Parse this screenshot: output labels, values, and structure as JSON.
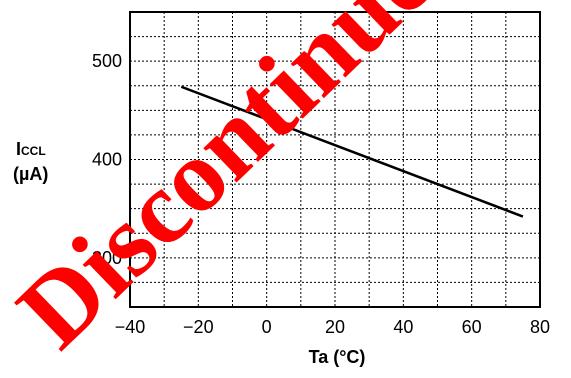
{
  "chart_data": {
    "type": "line",
    "title": "",
    "xlabel": "Ta (°C)",
    "ylabel_main": "I",
    "ylabel_sub": "CCL",
    "ylabel_unit": "(µA)",
    "xlim": [
      -40,
      80
    ],
    "ylim": [
      250,
      550
    ],
    "x_ticks": [
      -40,
      -20,
      0,
      20,
      40,
      60,
      80
    ],
    "x_tick_labels": [
      "−40",
      "−20",
      "0",
      "20",
      "40",
      "60",
      "80"
    ],
    "y_ticks": [
      300,
      400,
      500
    ],
    "y_tick_labels": [
      "300",
      "400",
      "500"
    ],
    "x_minor_step": 10,
    "y_minor_step": 25,
    "grid": true,
    "grid_style": "dotted",
    "series": [
      {
        "x": [
          -25,
          75
        ],
        "y": [
          474,
          342
        ],
        "color": "#000000"
      }
    ]
  },
  "watermark": {
    "text": "Discontinued",
    "color": "#ff0000"
  }
}
